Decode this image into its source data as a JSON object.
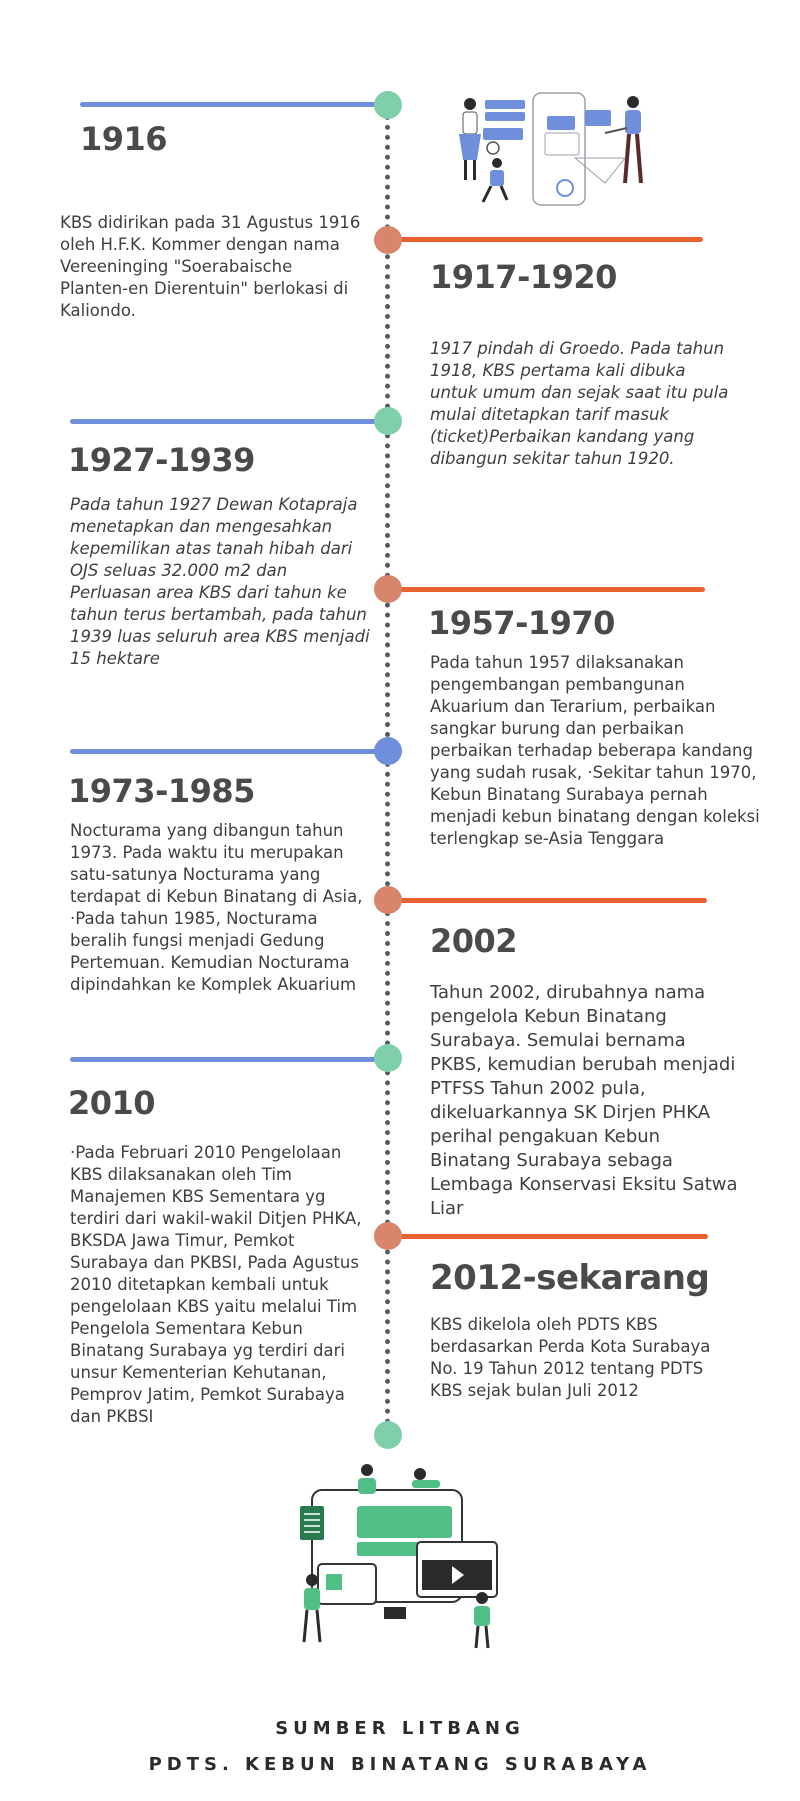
{
  "entries": [
    {
      "year": "1916",
      "text": "KBS didirikan pada 31 Agustus 1916 oleh H.F.K. Kommer dengan nama Vereeninging \"Soerabaische Planten-en Dierentuin\" berlokasi di Kaliondo."
    },
    {
      "year": "1917-1920",
      "text": "1917 pindah di Groedo. Pada tahun 1918, KBS pertama kali dibuka untuk umum dan sejak saat itu pula mulai ditetapkan tarif masuk (ticket)Perbaikan kandang yang dibangun sekitar tahun 1920."
    },
    {
      "year": "1927-1939",
      "text": "Pada tahun 1927 Dewan Kotapraja menetapkan dan mengesahkan kepemilikan atas tanah hibah dari OJS seluas 32.000 m2 dan Perluasan area KBS dari tahun ke tahun terus bertambah, pada tahun 1939 luas seluruh area KBS menjadi 15 hektare"
    },
    {
      "year": "1957-1970",
      "text": "Pada tahun 1957 dilaksanakan pengembangan pembangunan Akuarium dan Terarium, perbaikan sangkar burung dan perbaikan perbaikan terhadap beberapa kandang yang sudah rusak, ·Sekitar tahun 1970, Kebun Binatang Surabaya pernah menjadi kebun binatang dengan koleksi terlengkap se-Asia Tenggara"
    },
    {
      "year": "1973-1985",
      "text": "Nocturama yang dibangun tahun 1973. Pada waktu itu merupakan satu-satunya Nocturama yang terdapat di Kebun Binatang di Asia, ·Pada tahun 1985, Nocturama beralih fungsi menjadi Gedung Pertemuan. Kemudian Nocturama dipindahkan ke Komplek Akuarium"
    },
    {
      "year": "2002",
      "text": "Tahun 2002, dirubahnya nama pengelola Kebun Binatang Surabaya. Semulai bernama PKBS, kemudian berubah menjadi PTFSS Tahun 2002 pula, dikeluarkannya SK Dirjen PHKA perihal pengakuan Kebun Binatang Surabaya sebaga Lembaga Konservasi Eksitu Satwa Liar"
    },
    {
      "year": "2010",
      "text": "·Pada Februari 2010 Pengelolaan KBS dilaksanakan oleh Tim Manajemen KBS Sementara yg terdiri dari wakil-wakil Ditjen PHKA, BKSDA Jawa Timur, Pemkot Surabaya dan PKBSI, Pada Agustus 2010 ditetapkan kembali untuk pengelolaan KBS yaitu melalui Tim Pengelola Sementara Kebun Binatang Surabaya yg terdiri dari unsur Kementerian Kehutanan, Pemprov Jatim, Pemkot Surabaya dan PKBSI"
    },
    {
      "year": "2012-sekarang",
      "text": "KBS dikelola oleh PDTS KBS berdasarkan Perda Kota Surabaya No. 19 Tahun 2012 tentang PDTS KBS sejak bulan Juli 2012"
    }
  ],
  "footer": {
    "line1": "SUMBER LITBANG",
    "line2": "PDTS. KEBUN BINATANG SURABAYA"
  },
  "colors": {
    "blue": "#6f8fdc",
    "orange": "#e8612e",
    "green": "#7fcfab",
    "salmon": "#d7866b"
  },
  "illustrations": {
    "top": "team-mobile-app-illustration",
    "bottom": "team-dashboard-illustration"
  }
}
